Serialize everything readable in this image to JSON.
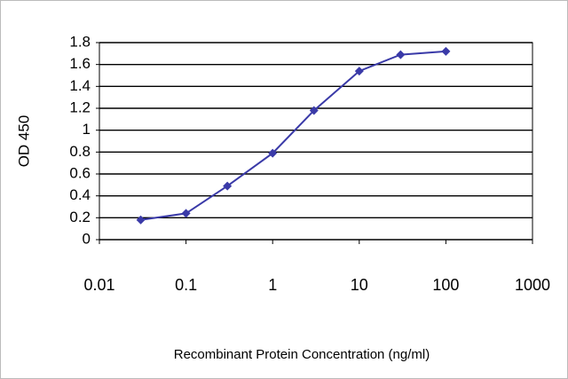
{
  "chart_data": {
    "type": "line",
    "y_label": "OD 450",
    "x_label": "Recombinant Protein Concentration (ng/ml)",
    "x": [
      0.03,
      0.1,
      0.3,
      1,
      3,
      10,
      30,
      100
    ],
    "values": [
      0.18,
      0.24,
      0.49,
      0.79,
      1.18,
      1.54,
      1.69,
      1.72
    ],
    "color": "#3a3aa8",
    "xscale": "log",
    "xlim": [
      0.01,
      1000
    ],
    "xticks": [
      0.01,
      0.1,
      1,
      10,
      100,
      1000
    ],
    "ylim": [
      0,
      1.8
    ],
    "yticks": [
      0,
      0.2,
      0.4,
      0.6,
      0.8,
      1,
      1.2,
      1.4,
      1.6,
      1.8
    ],
    "grid": true
  }
}
